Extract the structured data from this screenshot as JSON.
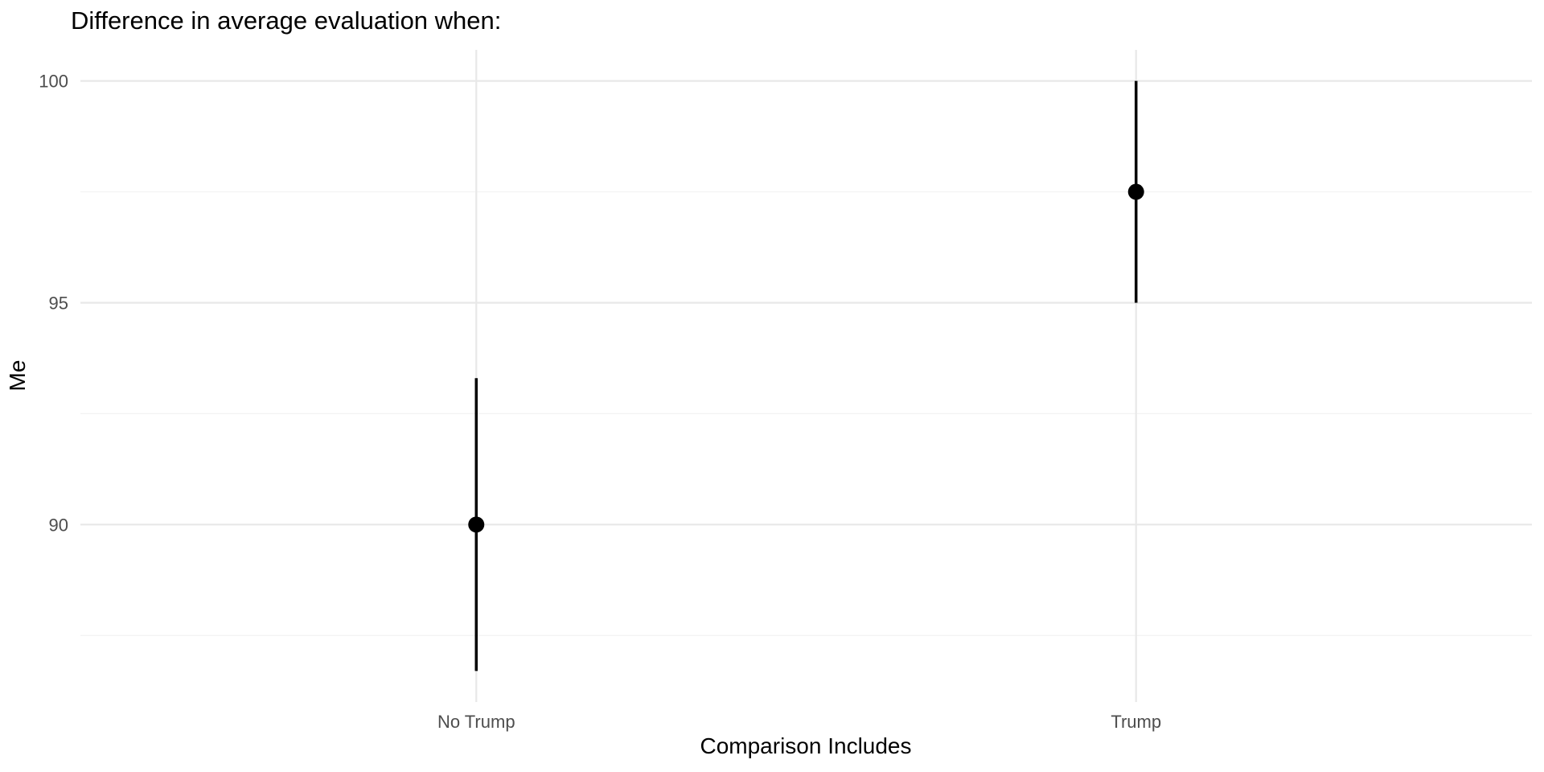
{
  "chart_data": {
    "type": "scatter",
    "subtype": "pointrange",
    "title": "Difference in average evaluation when:",
    "xlabel": "Comparison Includes",
    "ylabel": "Me",
    "categories": [
      "No Trump",
      "Trump"
    ],
    "points": [
      {
        "category": "No Trump",
        "mean": 90.0,
        "ci_low": 86.7,
        "ci_high": 93.3
      },
      {
        "category": "Trump",
        "mean": 97.5,
        "ci_low": 95.0,
        "ci_high": 100.0
      }
    ],
    "yticks": [
      90,
      95,
      100
    ],
    "minor_yticks": [
      87.5,
      92.5,
      97.5
    ],
    "ylim": [
      86.0,
      100.7
    ],
    "grid": true,
    "legend_position": "none",
    "colors": {
      "point": "#000000",
      "errorbar": "#000000",
      "grid_major": "#e8e8e8",
      "grid_minor": "#f2f2f2",
      "axis_text": "#4d4d4d",
      "title_text": "#000000",
      "background": "#ffffff"
    }
  }
}
